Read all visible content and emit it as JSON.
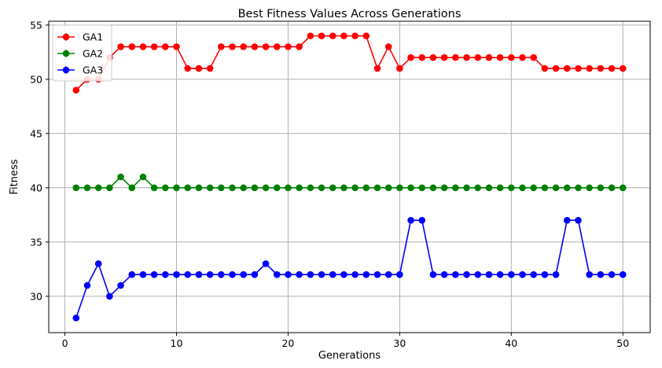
{
  "chart_data": {
    "type": "line",
    "title": "Best Fitness Values Across Generations",
    "xlabel": "Generations",
    "ylabel": "Fitness",
    "xlim": [
      -1.45,
      52.45
    ],
    "ylim": [
      26.65,
      55.35
    ],
    "xticks": [
      0,
      10,
      20,
      30,
      40,
      50
    ],
    "yticks": [
      30,
      35,
      40,
      45,
      50,
      55
    ],
    "grid": true,
    "legend_position": "top-left",
    "x": [
      1,
      2,
      3,
      4,
      5,
      6,
      7,
      8,
      9,
      10,
      11,
      12,
      13,
      14,
      15,
      16,
      17,
      18,
      19,
      20,
      21,
      22,
      23,
      24,
      25,
      26,
      27,
      28,
      29,
      30,
      31,
      32,
      33,
      34,
      35,
      36,
      37,
      38,
      39,
      40,
      41,
      42,
      43,
      44,
      45,
      46,
      47,
      48,
      49,
      50
    ],
    "series": [
      {
        "name": "GA1",
        "color": "#ff0000",
        "values": [
          49,
          50,
          50,
          52,
          53,
          53,
          53,
          53,
          53,
          53,
          51,
          51,
          51,
          53,
          53,
          53,
          53,
          53,
          53,
          53,
          53,
          54,
          54,
          54,
          54,
          54,
          54,
          51,
          53,
          51,
          52,
          52,
          52,
          52,
          52,
          52,
          52,
          52,
          52,
          52,
          52,
          52,
          51,
          51,
          51,
          51,
          51,
          51,
          51,
          51
        ]
      },
      {
        "name": "GA2",
        "color": "#008000",
        "values": [
          40,
          40,
          40,
          40,
          41,
          40,
          41,
          40,
          40,
          40,
          40,
          40,
          40,
          40,
          40,
          40,
          40,
          40,
          40,
          40,
          40,
          40,
          40,
          40,
          40,
          40,
          40,
          40,
          40,
          40,
          40,
          40,
          40,
          40,
          40,
          40,
          40,
          40,
          40,
          40,
          40,
          40,
          40,
          40,
          40,
          40,
          40,
          40,
          40,
          40
        ]
      },
      {
        "name": "GA3",
        "color": "#0000ff",
        "values": [
          28,
          31,
          33,
          30,
          31,
          32,
          32,
          32,
          32,
          32,
          32,
          32,
          32,
          32,
          32,
          32,
          32,
          33,
          32,
          32,
          32,
          32,
          32,
          32,
          32,
          32,
          32,
          32,
          32,
          32,
          37,
          37,
          32,
          32,
          32,
          32,
          32,
          32,
          32,
          32,
          32,
          32,
          32,
          32,
          37,
          37,
          32,
          32,
          32,
          32
        ]
      }
    ]
  }
}
